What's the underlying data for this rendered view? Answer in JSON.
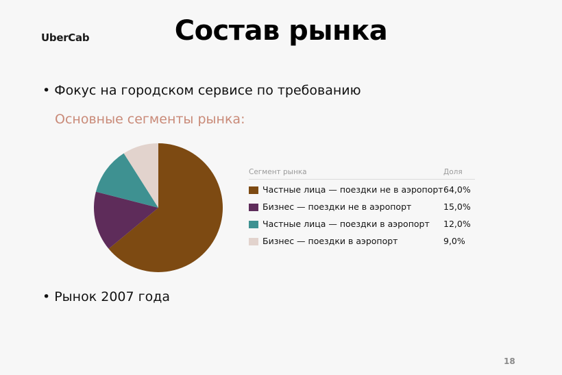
{
  "logo": "UberCab",
  "title": "Состав рынка",
  "bullets": {
    "dot": "•",
    "first": "Фокус на городском сервисе по требованию",
    "second": "Рынок 2007 года"
  },
  "subtitle": "Основные сегменты рынка:",
  "legend": {
    "header_segment": "Сегмент рынка",
    "header_share": "Доля"
  },
  "chart_data": {
    "type": "pie",
    "title": "",
    "legend_placement": "right",
    "slices": [
      {
        "label": "Частные лица — поездки не в аэропорт",
        "value": 64.0,
        "display": "64,0%",
        "color": "#7d4a12"
      },
      {
        "label": "Бизнес — поездки не в аэропорт",
        "value": 15.0,
        "display": "15,0%",
        "color": "#5e2c5a"
      },
      {
        "label": "Частные лица — поездки в аэропорт",
        "value": 12.0,
        "display": "12,0%",
        "color": "#3e9191"
      },
      {
        "label": "Бизнес — поездки в аэропорт",
        "value": 9.0,
        "display": "9,0%",
        "color": "#e2d3cd"
      }
    ]
  },
  "page_number": "18"
}
